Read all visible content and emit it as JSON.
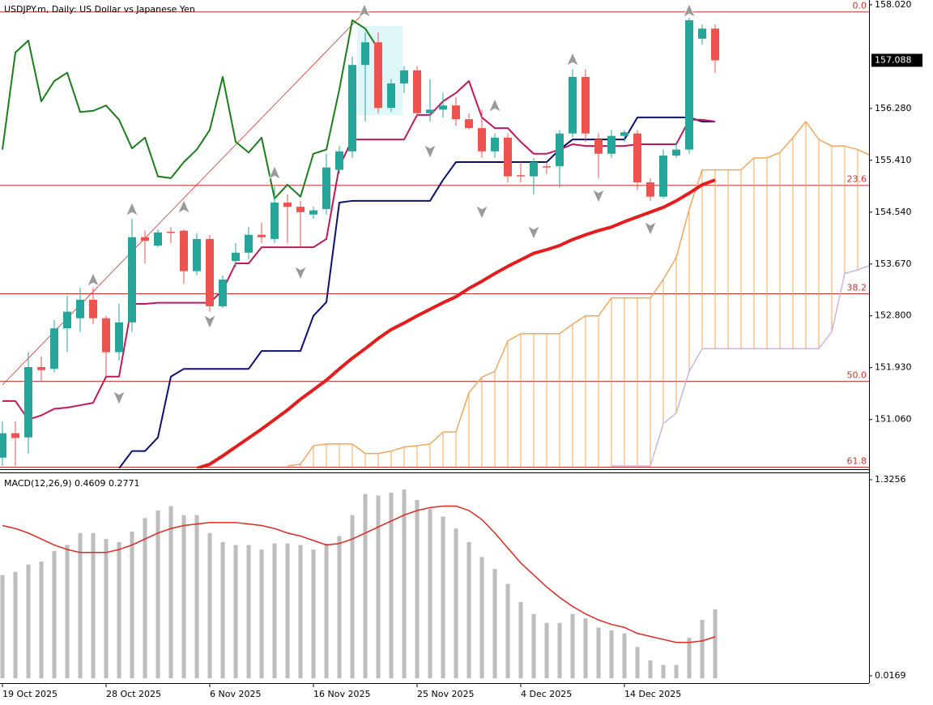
{
  "chart_data": [
    {
      "type": "candlestick",
      "title": "USDJPY.m, Daily:  US Dollar vs Japanese Yen",
      "categories": [
        "19 Oct 2025",
        null,
        null,
        null,
        null,
        null,
        null,
        null,
        "28 Oct 2025",
        null,
        null,
        null,
        null,
        null,
        null,
        null,
        "6 Nov 2025",
        null,
        null,
        null,
        null,
        null,
        null,
        null,
        "16 Nov 2025",
        null,
        null,
        null,
        null,
        null,
        null,
        null,
        "25 Nov 2025",
        null,
        null,
        null,
        null,
        null,
        null,
        null,
        "4 Dec 2025",
        null,
        null,
        null,
        null,
        null,
        null,
        null,
        "14 Dec 2025",
        null,
        null,
        null,
        null,
        null,
        null,
        null,
        null,
        null,
        null,
        null,
        null,
        null,
        null,
        null,
        null,
        null,
        null,
        null
      ],
      "open": [
        150.42,
        150.83,
        150.76,
        151.94,
        151.91,
        152.59,
        152.76,
        153.07,
        152.76,
        152.19,
        152.69,
        154.12,
        153.98,
        154.21,
        154.23,
        153.55,
        154.09,
        152.96,
        153.72,
        153.86,
        154.16,
        154.09,
        154.7,
        154.63,
        154.5,
        154.59,
        155.25,
        155.56,
        157.01,
        157.39,
        156.29,
        156.7,
        156.92,
        156.2,
        156.26,
        156.33,
        156.1,
        155.95,
        155.56,
        155.79,
        155.16,
        155.14,
        155.31,
        155.31,
        155.86,
        156.81,
        155.76,
        155.52,
        155.82,
        155.86,
        155.04,
        154.8,
        155.49,
        155.59,
        157.45,
        157.62,
        null,
        null,
        null,
        null,
        null,
        null,
        null,
        null,
        null,
        null,
        null,
        null
      ],
      "high": [
        151.03,
        151.03,
        152.19,
        152.12,
        152.73,
        153.14,
        153.27,
        153.27,
        152.8,
        153.0,
        154.43,
        154.23,
        154.25,
        154.29,
        154.25,
        154.19,
        154.16,
        153.48,
        154.02,
        154.29,
        154.36,
        154.97,
        154.84,
        154.73,
        154.63,
        155.52,
        155.65,
        157.15,
        157.56,
        157.56,
        156.77,
        156.99,
        156.99,
        156.77,
        156.54,
        156.47,
        156.2,
        156.26,
        155.86,
        155.86,
        155.38,
        155.45,
        155.38,
        155.92,
        156.94,
        156.94,
        155.86,
        155.92,
        155.92,
        155.92,
        155.11,
        155.59,
        155.72,
        157.8,
        157.69,
        157.69,
        null,
        null,
        null,
        null,
        null,
        null,
        null,
        null,
        null,
        null,
        null,
        null
      ],
      "low": [
        150.28,
        150.28,
        150.49,
        151.71,
        151.85,
        152.19,
        152.53,
        152.66,
        151.78,
        152.05,
        152.53,
        153.68,
        153.95,
        154.02,
        153.34,
        153.48,
        152.87,
        152.93,
        153.61,
        153.75,
        154.02,
        154.02,
        154.02,
        153.95,
        154.43,
        154.5,
        155.18,
        155.45,
        156.06,
        156.2,
        156.22,
        156.54,
        156.13,
        156.06,
        156.13,
        155.99,
        155.92,
        155.45,
        155.45,
        155.04,
        155.04,
        154.84,
        155.18,
        154.95,
        155.79,
        155.72,
        155.11,
        155.45,
        155.72,
        154.91,
        154.73,
        154.77,
        155.45,
        155.52,
        157.35,
        156.88,
        null,
        null,
        null,
        null,
        null,
        null,
        null,
        null,
        null,
        null,
        null,
        null
      ],
      "close": [
        150.83,
        150.75,
        151.94,
        151.89,
        152.59,
        152.87,
        153.07,
        152.76,
        152.19,
        152.69,
        154.12,
        154.06,
        154.2,
        154.19,
        153.55,
        154.09,
        152.96,
        153.41,
        153.86,
        154.16,
        154.12,
        154.7,
        154.63,
        154.54,
        154.57,
        155.29,
        155.56,
        157.01,
        157.39,
        156.29,
        156.7,
        156.92,
        156.2,
        156.26,
        156.33,
        156.1,
        155.95,
        155.56,
        155.79,
        155.14,
        155.14,
        155.38,
        155.29,
        155.86,
        156.81,
        155.86,
        155.52,
        155.82,
        155.88,
        155.04,
        154.8,
        155.49,
        155.59,
        157.76,
        157.62,
        157.088,
        null,
        null,
        null,
        null,
        null,
        null,
        null,
        null,
        null,
        null,
        null,
        null
      ],
      "bull_color": "#26a69a",
      "bear_color": "#ef5350",
      "cloud": {
        "span_a": {
          "color": "#f2a65a",
          "values": [
            null,
            null,
            null,
            null,
            null,
            null,
            null,
            null,
            null,
            null,
            null,
            null,
            null,
            null,
            null,
            null,
            null,
            null,
            null,
            null,
            null,
            null,
            150.28,
            150.31,
            150.62,
            150.65,
            150.65,
            150.65,
            150.49,
            150.49,
            150.53,
            150.6,
            150.62,
            150.65,
            150.85,
            150.85,
            151.51,
            151.77,
            151.87,
            152.38,
            152.5,
            152.5,
            152.5,
            152.5,
            152.66,
            152.8,
            152.8,
            153.1,
            153.1,
            153.1,
            153.1,
            153.41,
            153.78,
            154.59,
            155.25,
            155.25,
            155.25,
            155.25,
            155.45,
            155.45,
            155.54,
            155.79,
            156.06,
            155.76,
            155.65,
            155.65,
            155.59,
            155.49
          ]
        },
        "span_b": {
          "color": "#c9b6d9",
          "values": [
            null,
            null,
            null,
            null,
            null,
            null,
            null,
            null,
            null,
            null,
            null,
            null,
            null,
            null,
            null,
            null,
            null,
            null,
            null,
            null,
            null,
            null,
            null,
            null,
            null,
            null,
            null,
            null,
            null,
            null,
            null,
            null,
            null,
            null,
            null,
            null,
            null,
            null,
            null,
            null,
            null,
            null,
            null,
            null,
            null,
            null,
            null,
            150.28,
            150.28,
            150.28,
            150.28,
            150.99,
            151.17,
            151.87,
            152.25,
            152.25,
            152.25,
            152.25,
            152.25,
            152.25,
            152.25,
            152.25,
            152.25,
            152.25,
            152.53,
            153.51,
            153.57,
            153.65
          ]
        }
      },
      "lines": [
        {
          "color": "#e51c1c",
          "width": 4,
          "values": [
            null,
            null,
            null,
            null,
            null,
            null,
            null,
            null,
            null,
            null,
            null,
            null,
            null,
            null,
            null,
            150.24,
            150.31,
            150.45,
            150.6,
            150.75,
            150.9,
            151.06,
            151.22,
            151.4,
            151.56,
            151.72,
            151.91,
            152.09,
            152.25,
            152.42,
            152.57,
            152.68,
            152.8,
            152.91,
            153.02,
            153.12,
            153.26,
            153.38,
            153.51,
            153.63,
            153.74,
            153.85,
            153.91,
            153.98,
            154.08,
            154.16,
            154.23,
            154.29,
            154.38,
            154.46,
            154.54,
            154.62,
            154.73,
            154.86,
            155.0,
            155.08,
            null,
            null,
            null,
            null,
            null,
            null,
            null,
            null,
            null,
            null,
            null,
            null
          ]
        },
        {
          "color": "#0a1172",
          "width": 2,
          "values": [
            null,
            null,
            null,
            null,
            null,
            null,
            null,
            null,
            null,
            150.24,
            150.53,
            150.53,
            150.76,
            151.78,
            151.91,
            151.91,
            151.91,
            151.91,
            151.91,
            151.91,
            152.21,
            152.21,
            152.21,
            152.21,
            152.8,
            153.03,
            154.7,
            154.73,
            154.73,
            154.73,
            154.73,
            154.73,
            154.73,
            154.73,
            155.08,
            155.38,
            155.38,
            155.38,
            155.38,
            155.38,
            155.38,
            155.38,
            155.38,
            155.59,
            155.76,
            155.76,
            155.76,
            155.76,
            155.76,
            156.13,
            156.13,
            156.13,
            156.13,
            156.13,
            156.06,
            156.06,
            null,
            null,
            null,
            null,
            null,
            null,
            null,
            null,
            null,
            null,
            null,
            null
          ]
        },
        {
          "color": "#c2185b",
          "width": 2,
          "values": [
            151.37,
            151.37,
            151.06,
            151.13,
            151.24,
            151.26,
            151.3,
            151.34,
            151.78,
            151.78,
            153.0,
            153.0,
            153.02,
            153.02,
            153.02,
            153.02,
            153.02,
            153.23,
            153.68,
            153.68,
            153.95,
            153.95,
            153.95,
            153.95,
            153.95,
            154.09,
            155.31,
            155.76,
            155.76,
            155.76,
            155.76,
            155.76,
            156.17,
            156.17,
            156.4,
            156.54,
            156.74,
            156.13,
            155.95,
            155.95,
            155.72,
            155.52,
            155.52,
            155.59,
            155.68,
            155.65,
            155.65,
            155.65,
            155.65,
            155.68,
            155.68,
            155.68,
            155.68,
            156.09,
            156.09,
            156.06,
            null,
            null,
            null,
            null,
            null,
            null,
            null,
            null,
            null,
            null,
            null,
            null
          ]
        },
        {
          "color": "#1a7f1a",
          "width": 2,
          "values": [
            155.59,
            157.22,
            157.42,
            156.4,
            156.74,
            156.88,
            156.22,
            156.24,
            156.33,
            156.09,
            155.61,
            155.79,
            155.14,
            155.11,
            155.38,
            155.59,
            155.92,
            156.81,
            155.72,
            155.54,
            155.79,
            154.77,
            155.0,
            154.8,
            155.52,
            155.59,
            156.6,
            157.76,
            157.62,
            157.28,
            null,
            null,
            null,
            null,
            null,
            null,
            null,
            null,
            null,
            null,
            null,
            null,
            null,
            null,
            null,
            null,
            null,
            null,
            null,
            null,
            null,
            null,
            null,
            null,
            null,
            null,
            null,
            null,
            null,
            null,
            null,
            null,
            null,
            null,
            null,
            null,
            null,
            null
          ]
        }
      ],
      "fibonacci": {
        "color": "#d32f2f",
        "levels": [
          {
            "value": 157.9,
            "label": "0.0"
          },
          {
            "value": 154.99,
            "label": "23.6"
          },
          {
            "value": 153.17,
            "label": "38.2"
          },
          {
            "value": 151.7,
            "label": "50.0"
          },
          {
            "value": 150.26,
            "label": "61.8"
          }
        ]
      },
      "ylim": [
        150.24,
        158.1
      ],
      "yticks": [
        {
          "value": 158.02,
          "label": "158.020"
        },
        {
          "value": 156.28,
          "label": "156.280"
        },
        {
          "value": 155.41,
          "label": "155.410"
        },
        {
          "value": 154.54,
          "label": "154.540"
        },
        {
          "value": 153.67,
          "label": "153.670"
        },
        {
          "value": 152.8,
          "label": "152.800"
        },
        {
          "value": 151.93,
          "label": "151.930"
        },
        {
          "value": 151.06,
          "label": "151.060"
        }
      ]
    },
    {
      "type": "macd",
      "title": "MACD(12,26,9) 0.4609 0.2771",
      "series": [
        {
          "color": "#bdbdbd",
          "values": [
            0.69,
            0.71,
            0.76,
            0.78,
            0.85,
            0.89,
            0.97,
            0.97,
            0.93,
            0.91,
            0.98,
            1.07,
            1.12,
            1.15,
            1.09,
            1.09,
            0.97,
            0.91,
            0.89,
            0.89,
            0.86,
            0.9,
            0.9,
            0.89,
            0.86,
            0.9,
            0.95,
            1.09,
            1.23,
            1.22,
            1.24,
            1.26,
            1.19,
            1.13,
            1.08,
            1.0,
            0.91,
            0.81,
            0.73,
            0.63,
            0.51,
            0.43,
            0.37,
            0.37,
            0.43,
            0.4,
            0.34,
            0.32,
            0.3,
            0.21,
            0.12,
            0.09,
            0.09,
            0.27,
            0.39,
            0.4609,
            null,
            null,
            null,
            null,
            null,
            null,
            null,
            null,
            null,
            null,
            null,
            null
          ]
        },
        {
          "color": "#e0281e",
          "values": [
            1.02,
            1.0,
            0.97,
            0.93,
            0.89,
            0.86,
            0.84,
            0.84,
            0.84,
            0.86,
            0.89,
            0.93,
            0.97,
            1.0,
            1.02,
            1.03,
            1.04,
            1.04,
            1.04,
            1.03,
            1.02,
            1.0,
            0.97,
            0.95,
            0.92,
            0.89,
            0.9,
            0.93,
            0.97,
            1.01,
            1.05,
            1.09,
            1.12,
            1.14,
            1.15,
            1.15,
            1.12,
            1.06,
            0.97,
            0.87,
            0.77,
            0.69,
            0.61,
            0.54,
            0.48,
            0.43,
            0.39,
            0.36,
            0.34,
            0.3,
            0.28,
            0.26,
            0.24,
            0.24,
            0.25,
            0.2771,
            null,
            null,
            null,
            null,
            null,
            null,
            null,
            null,
            null,
            null,
            null,
            null
          ]
        }
      ],
      "ylim": [
        -0.0318,
        1.3689
      ],
      "yticks": [
        1.3256,
        0.0169
      ]
    }
  ]
}
